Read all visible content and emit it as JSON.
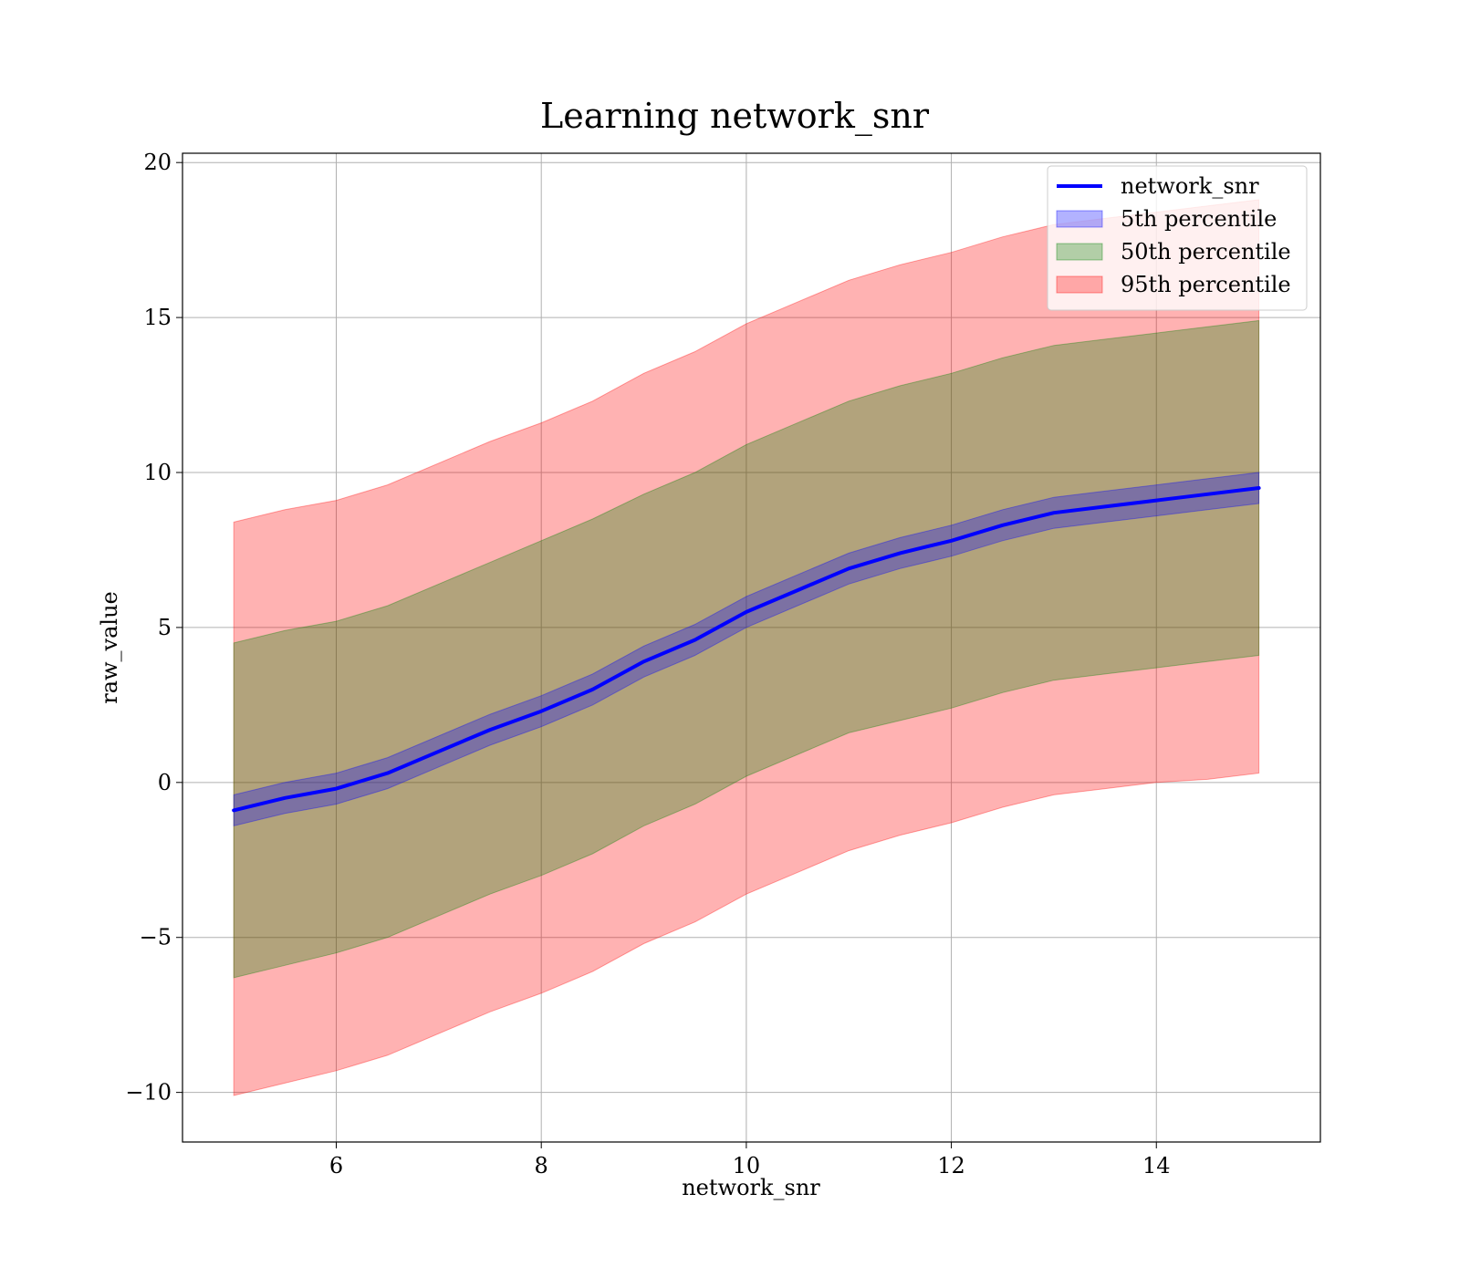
{
  "chart_data": {
    "type": "area",
    "title": "Learning network_snr",
    "xlabel": "network_snr",
    "ylabel": "raw_value",
    "xlim": [
      4.5,
      15.6
    ],
    "ylim": [
      -11.6,
      20.3
    ],
    "xticks": [
      6,
      8,
      10,
      12,
      14
    ],
    "yticks": [
      -10,
      -5,
      0,
      5,
      10,
      15,
      20
    ],
    "xtick_labels": [
      "6",
      "8",
      "10",
      "12",
      "14"
    ],
    "ytick_labels": [
      "−10",
      "−5",
      "0",
      "5",
      "10",
      "15",
      "20"
    ],
    "grid": true,
    "legend_position": "top-right",
    "x": [
      5.0,
      5.5,
      6.0,
      6.5,
      7.0,
      7.5,
      8.0,
      8.5,
      9.0,
      9.5,
      10.0,
      10.5,
      11.0,
      11.5,
      12.0,
      12.5,
      13.0,
      13.5,
      14.0,
      14.5,
      15.0
    ],
    "series": [
      {
        "name": "network_snr",
        "kind": "line",
        "color": "#0000ff",
        "values": [
          -0.9,
          -0.5,
          -0.2,
          0.3,
          1.0,
          1.7,
          2.3,
          3.0,
          3.9,
          4.6,
          5.5,
          6.2,
          6.9,
          7.4,
          7.8,
          8.3,
          8.7,
          8.9,
          9.1,
          9.3,
          9.5
        ]
      },
      {
        "name": "5th percentile",
        "kind": "band",
        "color": "#0000ff",
        "opacity": 0.3,
        "lower": [
          -1.4,
          -1.0,
          -0.7,
          -0.2,
          0.5,
          1.2,
          1.8,
          2.5,
          3.4,
          4.1,
          5.0,
          5.7,
          6.4,
          6.9,
          7.3,
          7.8,
          8.2,
          8.4,
          8.6,
          8.8,
          9.0
        ],
        "upper": [
          -0.4,
          0.0,
          0.3,
          0.8,
          1.5,
          2.2,
          2.8,
          3.5,
          4.4,
          5.1,
          6.0,
          6.7,
          7.4,
          7.9,
          8.3,
          8.8,
          9.2,
          9.4,
          9.6,
          9.8,
          10.0
        ]
      },
      {
        "name": "50th percentile",
        "kind": "band",
        "color": "#008000",
        "opacity": 0.3,
        "lower": [
          -6.3,
          -5.9,
          -5.5,
          -5.0,
          -4.3,
          -3.6,
          -3.0,
          -2.3,
          -1.4,
          -0.7,
          0.2,
          0.9,
          1.6,
          2.0,
          2.4,
          2.9,
          3.3,
          3.5,
          3.7,
          3.9,
          4.1
        ],
        "upper": [
          4.5,
          4.9,
          5.2,
          5.7,
          6.4,
          7.1,
          7.8,
          8.5,
          9.3,
          10.0,
          10.9,
          11.6,
          12.3,
          12.8,
          13.2,
          13.7,
          14.1,
          14.3,
          14.5,
          14.7,
          14.9
        ]
      },
      {
        "name": "95th percentile",
        "kind": "band",
        "color": "#ff0000",
        "opacity": 0.3,
        "lower": [
          -10.1,
          -9.7,
          -9.3,
          -8.8,
          -8.1,
          -7.4,
          -6.8,
          -6.1,
          -5.2,
          -4.5,
          -3.6,
          -2.9,
          -2.2,
          -1.7,
          -1.3,
          -0.8,
          -0.4,
          -0.2,
          0.0,
          0.1,
          0.3
        ],
        "upper": [
          8.4,
          8.8,
          9.1,
          9.6,
          10.3,
          11.0,
          11.6,
          12.3,
          13.2,
          13.9,
          14.8,
          15.5,
          16.2,
          16.7,
          17.1,
          17.6,
          18.0,
          18.2,
          18.4,
          18.6,
          18.8
        ]
      }
    ]
  }
}
